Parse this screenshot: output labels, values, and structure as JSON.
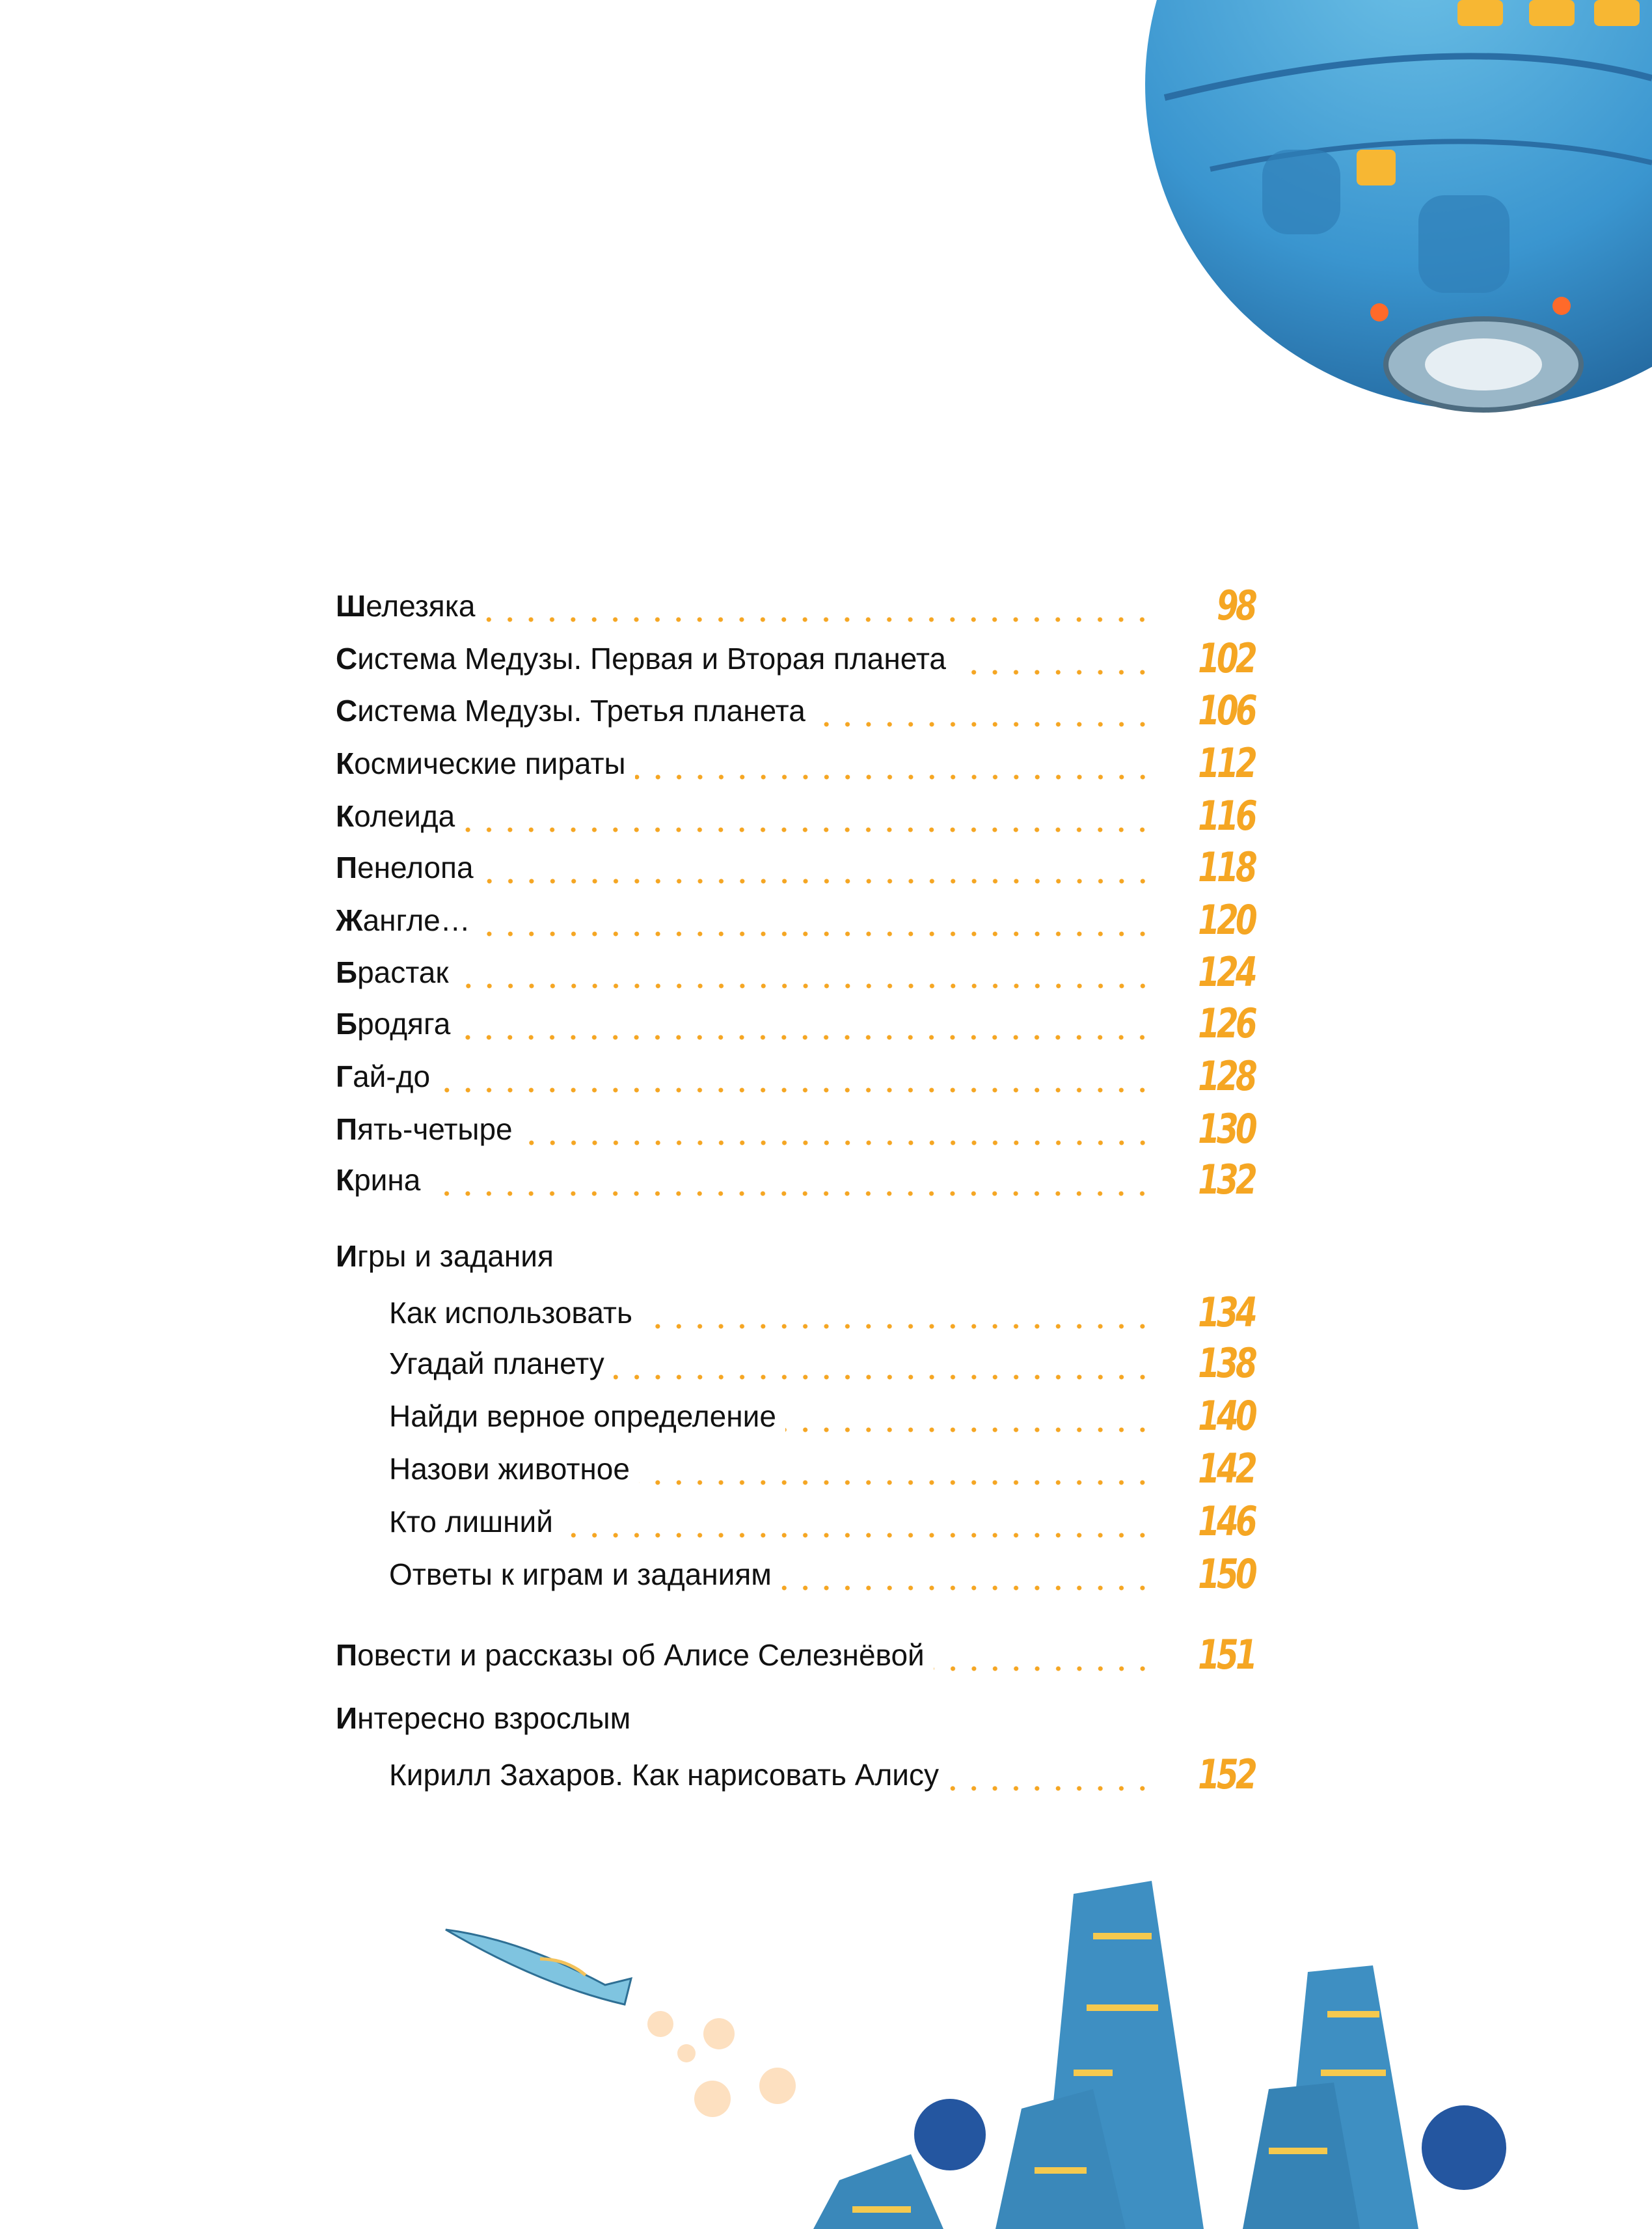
{
  "colors": {
    "accent": "#f5a623",
    "text": "#111111",
    "planet": "#3d9bd0"
  },
  "illustrations": [
    "planet-spaceship",
    "small-spaceship",
    "bubbles",
    "city-towers"
  ],
  "toc": [
    {
      "type": "entry",
      "title": "Шелезяка",
      "page": "98"
    },
    {
      "type": "entry",
      "title": "Система Медузы. Первая и Вторая планета",
      "page": "102"
    },
    {
      "type": "entry",
      "title": "Система Медузы. Третья планета",
      "page": "106"
    },
    {
      "type": "entry",
      "title": "Космические пираты",
      "page": "112"
    },
    {
      "type": "entry",
      "title": "Колеида",
      "page": "116"
    },
    {
      "type": "entry",
      "title": "Пенелопа",
      "page": "118"
    },
    {
      "type": "entry",
      "title": "Жангле…",
      "page": "120"
    },
    {
      "type": "entry",
      "title": "Брастак",
      "page": "124"
    },
    {
      "type": "entry",
      "title": "Бродяга",
      "page": "126"
    },
    {
      "type": "entry",
      "title": "Гай-до",
      "page": "128"
    },
    {
      "type": "entry",
      "title": "Пять-четыре",
      "page": "130"
    },
    {
      "type": "entry",
      "title": "Крина",
      "page": "132"
    },
    {
      "type": "heading",
      "title": "Игры и задания"
    },
    {
      "type": "sub",
      "title": "Как использовать",
      "page": "134"
    },
    {
      "type": "sub",
      "title": "Угадай планету",
      "page": "138"
    },
    {
      "type": "sub",
      "title": "Найди верное определение",
      "page": "140"
    },
    {
      "type": "sub",
      "title": "Назови животное",
      "page": "142"
    },
    {
      "type": "sub",
      "title": "Кто лишний",
      "page": "146"
    },
    {
      "type": "sub",
      "title": "Ответы к играм и заданиям",
      "page": "150"
    },
    {
      "type": "entry",
      "title": "Повести и рассказы об Алисе Селезнёвой",
      "page": "151"
    },
    {
      "type": "heading",
      "title": "Интересно взрослым"
    },
    {
      "type": "sub",
      "title": "Кирилл Захаров. Как нарисовать Алису",
      "page": "152"
    }
  ]
}
